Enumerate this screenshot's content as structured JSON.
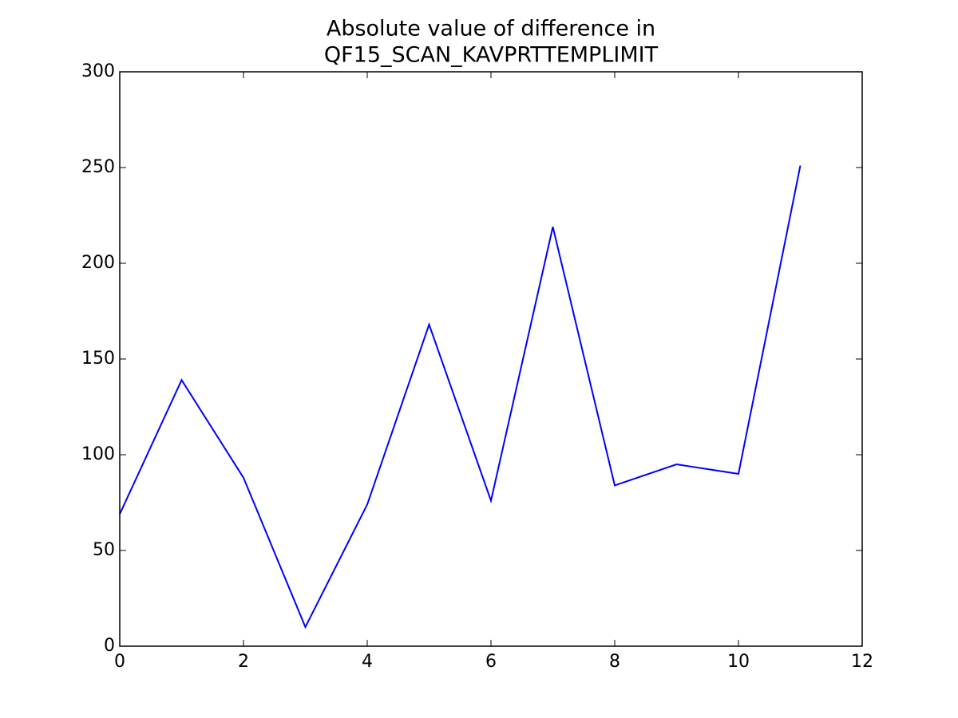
{
  "chart_data": {
    "type": "line",
    "title": [
      "Absolute value of difference in",
      "QF15_SCAN_KAVPRTTEMPLIMIT"
    ],
    "x": [
      0,
      1,
      2,
      3,
      4,
      5,
      6,
      7,
      8,
      9,
      10,
      11
    ],
    "series": [
      {
        "color": "#0000ff",
        "values": [
          69,
          139,
          88,
          10,
          74,
          168,
          76,
          219,
          84,
          95,
          90,
          251
        ]
      }
    ],
    "xlim": [
      0,
      12
    ],
    "xticks": [
      0,
      2,
      4,
      6,
      8,
      10,
      12
    ],
    "ylim": [
      0,
      300
    ],
    "yticks": [
      0,
      50,
      100,
      150,
      200,
      250,
      300
    ],
    "grid": false
  }
}
